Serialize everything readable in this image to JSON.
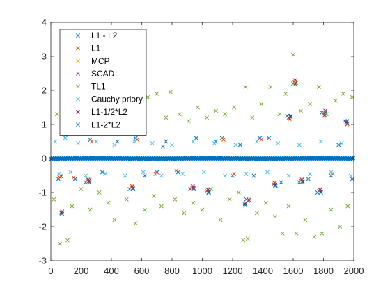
{
  "chart_data": {
    "type": "scatter",
    "marker": "x",
    "xlim": [
      0,
      2000
    ],
    "ylim": [
      -3,
      4
    ],
    "x_ticks": [
      0,
      200,
      400,
      600,
      800,
      1000,
      1200,
      1400,
      1600,
      1800,
      2000
    ],
    "y_ticks": [
      -3,
      -2,
      -1,
      0,
      1,
      2,
      3,
      4
    ],
    "x_tick_labels": [
      "0",
      "200",
      "400",
      "600",
      "800",
      "1000",
      "1200",
      "1400",
      "1600",
      "1800",
      "2000"
    ],
    "y_tick_labels": [
      "-3",
      "-2",
      "-1",
      "0",
      "1",
      "2",
      "3",
      "4"
    ],
    "grid": false,
    "legend_position": "top-left",
    "x_count": 2000,
    "series": [
      {
        "name": "L1 - L2",
        "color": "#0072BD",
        "points": [
          [
            50,
            -0.6
          ],
          [
            70,
            -1.6
          ],
          [
            80,
            1.0
          ],
          [
            100,
            0.7
          ],
          [
            160,
            -0.6
          ],
          [
            230,
            -0.7
          ],
          [
            260,
            0.55
          ],
          [
            340,
            -0.4
          ],
          [
            440,
            0.5
          ],
          [
            480,
            0.9
          ],
          [
            520,
            -0.9
          ],
          [
            560,
            0.6
          ],
          [
            620,
            -0.5
          ],
          [
            700,
            -0.4
          ],
          [
            740,
            0.35
          ],
          [
            760,
            0.5
          ],
          [
            840,
            -0.4
          ],
          [
            920,
            -0.9
          ],
          [
            960,
            0.6
          ],
          [
            1040,
            -1.0
          ],
          [
            1090,
            0.5
          ],
          [
            1130,
            0.6
          ],
          [
            1200,
            -0.5
          ],
          [
            1250,
            0.4
          ],
          [
            1280,
            -1.35
          ],
          [
            1290,
            -1.2
          ],
          [
            1340,
            -0.5
          ],
          [
            1380,
            0.6
          ],
          [
            1440,
            0.6
          ],
          [
            1480,
            -0.8
          ],
          [
            1520,
            -0.7
          ],
          [
            1560,
            1.25
          ],
          [
            1600,
            2.2
          ],
          [
            1640,
            -0.7
          ],
          [
            1700,
            -0.6
          ],
          [
            1760,
            -1.0
          ],
          [
            1790,
            1.35
          ],
          [
            1850,
            -0.5
          ],
          [
            1900,
            0.4
          ],
          [
            1940,
            1.1
          ],
          [
            1990,
            -0.6
          ]
        ]
      },
      {
        "name": "L1",
        "color": "#D95319",
        "points": [
          [
            60,
            -0.55
          ],
          [
            75,
            -1.55
          ],
          [
            90,
            0.95
          ],
          [
            150,
            -0.55
          ],
          [
            240,
            -0.65
          ],
          [
            270,
            0.5
          ],
          [
            470,
            0.85
          ],
          [
            530,
            -0.85
          ],
          [
            570,
            0.55
          ],
          [
            690,
            -0.45
          ],
          [
            830,
            -0.35
          ],
          [
            930,
            -0.85
          ],
          [
            1030,
            -0.95
          ],
          [
            1140,
            0.55
          ],
          [
            1210,
            -0.45
          ],
          [
            1300,
            -1.25
          ],
          [
            1390,
            0.55
          ],
          [
            1470,
            -0.75
          ],
          [
            1570,
            1.2
          ],
          [
            1610,
            2.25
          ],
          [
            1650,
            -0.65
          ],
          [
            1770,
            -0.95
          ],
          [
            1800,
            1.3
          ],
          [
            1860,
            -0.45
          ],
          [
            1950,
            1.05
          ]
        ]
      },
      {
        "name": "MCP",
        "color": "#EDB120",
        "points": [
          [
            65,
            -0.5
          ],
          [
            85,
            0.9
          ],
          [
            245,
            -0.6
          ],
          [
            475,
            0.8
          ],
          [
            535,
            -0.8
          ],
          [
            935,
            -0.8
          ],
          [
            1035,
            -0.9
          ],
          [
            1305,
            -1.2
          ],
          [
            1475,
            -0.7
          ],
          [
            1575,
            1.15
          ],
          [
            1615,
            2.2
          ],
          [
            1655,
            -0.6
          ],
          [
            1775,
            -0.9
          ],
          [
            1805,
            1.25
          ],
          [
            1955,
            1.0
          ]
        ]
      },
      {
        "name": "SCAD",
        "color": "#7E2F8E",
        "points": [
          [
            68,
            -0.52
          ],
          [
            88,
            0.92
          ],
          [
            248,
            -0.62
          ],
          [
            478,
            0.82
          ],
          [
            538,
            -0.82
          ],
          [
            938,
            -0.82
          ],
          [
            1038,
            -0.92
          ],
          [
            1308,
            -1.22
          ],
          [
            1478,
            -0.72
          ],
          [
            1578,
            1.17
          ],
          [
            1618,
            2.22
          ],
          [
            1658,
            -0.62
          ],
          [
            1778,
            -0.92
          ],
          [
            1808,
            1.27
          ],
          [
            1958,
            1.02
          ]
        ]
      },
      {
        "name": "TL1",
        "color": "#77AC30",
        "points": [
          [
            20,
            -1.2
          ],
          [
            40,
            1.3
          ],
          [
            60,
            -2.5
          ],
          [
            90,
            1.5
          ],
          [
            110,
            -2.4
          ],
          [
            140,
            -1.4
          ],
          [
            170,
            1.6
          ],
          [
            200,
            -0.9
          ],
          [
            220,
            1.2
          ],
          [
            260,
            -1.5
          ],
          [
            290,
            1.5
          ],
          [
            320,
            -1.0
          ],
          [
            350,
            1.7
          ],
          [
            380,
            -1.3
          ],
          [
            400,
            0.9
          ],
          [
            420,
            -1.8
          ],
          [
            450,
            1.3
          ],
          [
            470,
            1.6
          ],
          [
            500,
            -1.2
          ],
          [
            530,
            1.4
          ],
          [
            560,
            -1.9
          ],
          [
            590,
            1.1
          ],
          [
            620,
            -1.5
          ],
          [
            640,
            1.8
          ],
          [
            680,
            -1.1
          ],
          [
            700,
            1.9
          ],
          [
            730,
            -1.4
          ],
          [
            760,
            1.2
          ],
          [
            790,
            1.95
          ],
          [
            820,
            -1.2
          ],
          [
            850,
            1.3
          ],
          [
            880,
            -1.6
          ],
          [
            910,
            1.1
          ],
          [
            940,
            -1.3
          ],
          [
            970,
            1.5
          ],
          [
            1000,
            -1.5
          ],
          [
            1030,
            1.2
          ],
          [
            1060,
            -0.9
          ],
          [
            1090,
            1.4
          ],
          [
            1120,
            -1.8
          ],
          [
            1150,
            1.3
          ],
          [
            1180,
            -1.2
          ],
          [
            1210,
            1.5
          ],
          [
            1240,
            -1.0
          ],
          [
            1270,
            -2.4
          ],
          [
            1285,
            2.1
          ],
          [
            1300,
            -2.35
          ],
          [
            1330,
            1.2
          ],
          [
            1360,
            -1.6
          ],
          [
            1390,
            1.6
          ],
          [
            1420,
            -1.3
          ],
          [
            1450,
            2.1
          ],
          [
            1480,
            -1.7
          ],
          [
            1510,
            1.3
          ],
          [
            1530,
            -2.2
          ],
          [
            1550,
            1.9
          ],
          [
            1570,
            -1.4
          ],
          [
            1600,
            3.05
          ],
          [
            1620,
            -2.2
          ],
          [
            1650,
            1.4
          ],
          [
            1680,
            -1.8
          ],
          [
            1710,
            1.6
          ],
          [
            1740,
            -2.3
          ],
          [
            1770,
            2.1
          ],
          [
            1790,
            -2.2
          ],
          [
            1820,
            1.3
          ],
          [
            1850,
            -1.5
          ],
          [
            1880,
            1.7
          ],
          [
            1910,
            -2.0
          ],
          [
            1930,
            1.9
          ],
          [
            1960,
            -1.4
          ],
          [
            1990,
            1.8
          ]
        ]
      },
      {
        "name": "Cauchy priory",
        "color": "#4DBEEE",
        "points": [
          [
            30,
            0.5
          ],
          [
            55,
            -0.45
          ],
          [
            95,
            0.6
          ],
          [
            130,
            -0.4
          ],
          [
            180,
            0.45
          ],
          [
            230,
            -0.5
          ],
          [
            300,
            0.5
          ],
          [
            360,
            -0.45
          ],
          [
            420,
            0.4
          ],
          [
            490,
            -0.5
          ],
          [
            550,
            0.5
          ],
          [
            610,
            -0.4
          ],
          [
            670,
            0.45
          ],
          [
            730,
            -0.5
          ],
          [
            800,
            0.4
          ],
          [
            870,
            -0.45
          ],
          [
            940,
            0.5
          ],
          [
            1010,
            -0.4
          ],
          [
            1080,
            0.45
          ],
          [
            1150,
            -0.5
          ],
          [
            1220,
            0.4
          ],
          [
            1290,
            -0.45
          ],
          [
            1360,
            0.5
          ],
          [
            1430,
            -0.4
          ],
          [
            1500,
            0.45
          ],
          [
            1570,
            -0.5
          ],
          [
            1640,
            0.4
          ],
          [
            1710,
            -0.45
          ],
          [
            1780,
            0.5
          ],
          [
            1850,
            -0.4
          ],
          [
            1920,
            0.45
          ],
          [
            1980,
            -0.5
          ]
        ]
      },
      {
        "name": "L1-1/2*L2",
        "color": "#A2142F",
        "points": [
          [
            72,
            -1.58
          ],
          [
            92,
            0.97
          ],
          [
            252,
            -0.66
          ],
          [
            482,
            0.87
          ],
          [
            542,
            -0.87
          ],
          [
            942,
            -0.87
          ],
          [
            1042,
            -0.97
          ],
          [
            1282,
            -1.32
          ],
          [
            1482,
            -0.77
          ],
          [
            1582,
            1.22
          ],
          [
            1612,
            2.3
          ],
          [
            1662,
            -0.67
          ],
          [
            1782,
            -0.97
          ],
          [
            1812,
            1.4
          ],
          [
            1952,
            1.07
          ]
        ]
      },
      {
        "name": "L1-2*L2",
        "color": "#0072BD",
        "points": [
          [
            74,
            -1.62
          ],
          [
            94,
            1.0
          ],
          [
            254,
            -0.7
          ],
          [
            484,
            0.9
          ],
          [
            544,
            -0.9
          ],
          [
            944,
            -0.9
          ],
          [
            1044,
            -1.0
          ],
          [
            1284,
            -1.38
          ],
          [
            1484,
            -0.8
          ],
          [
            1584,
            1.25
          ],
          [
            1614,
            2.18
          ],
          [
            1664,
            -0.7
          ],
          [
            1784,
            -1.0
          ],
          [
            1814,
            1.35
          ],
          [
            1954,
            1.1
          ]
        ]
      }
    ]
  }
}
